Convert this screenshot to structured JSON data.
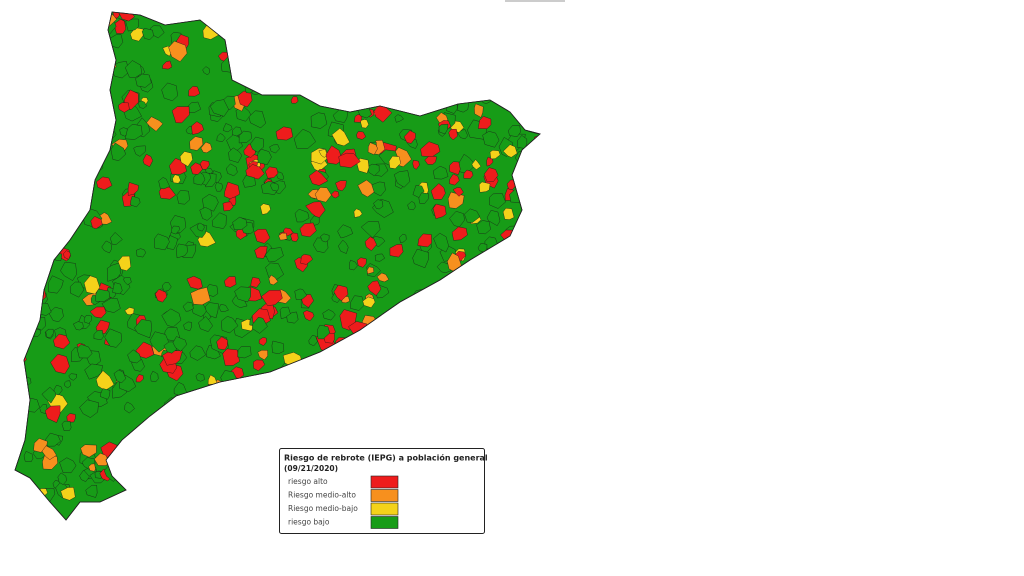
{
  "legend": {
    "title": "Riesgo de rebrote (IEPG) a población general",
    "date": "(09/21/2020)",
    "items": [
      {
        "label": "riesgo alto",
        "color": "#ee1c1c"
      },
      {
        "label": "Riesgo medio-alto",
        "color": "#f7901e"
      },
      {
        "label": "Riesgo medio-bajo",
        "color": "#f4d21a"
      },
      {
        "label": "riesgo bajo",
        "color": "#179c17"
      }
    ]
  }
}
